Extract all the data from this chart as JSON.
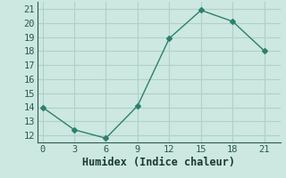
{
  "x": [
    0,
    3,
    6,
    9,
    12,
    15,
    18,
    21
  ],
  "y": [
    14,
    12.4,
    11.8,
    14.1,
    18.9,
    20.9,
    20.1,
    18.0
  ],
  "xlabel": "Humidex (Indice chaleur)",
  "xlim": [
    -0.5,
    22.5
  ],
  "ylim": [
    11.5,
    21.5
  ],
  "xticks": [
    0,
    3,
    6,
    9,
    12,
    15,
    18,
    21
  ],
  "yticks": [
    12,
    13,
    14,
    15,
    16,
    17,
    18,
    19,
    20,
    21
  ],
  "line_color": "#2e7f6e",
  "marker": "D",
  "marker_size": 3,
  "bg_color": "#cce8e0",
  "grid_color": "#b0d0c8",
  "tick_fontsize": 7.5,
  "xlabel_fontsize": 8.5
}
